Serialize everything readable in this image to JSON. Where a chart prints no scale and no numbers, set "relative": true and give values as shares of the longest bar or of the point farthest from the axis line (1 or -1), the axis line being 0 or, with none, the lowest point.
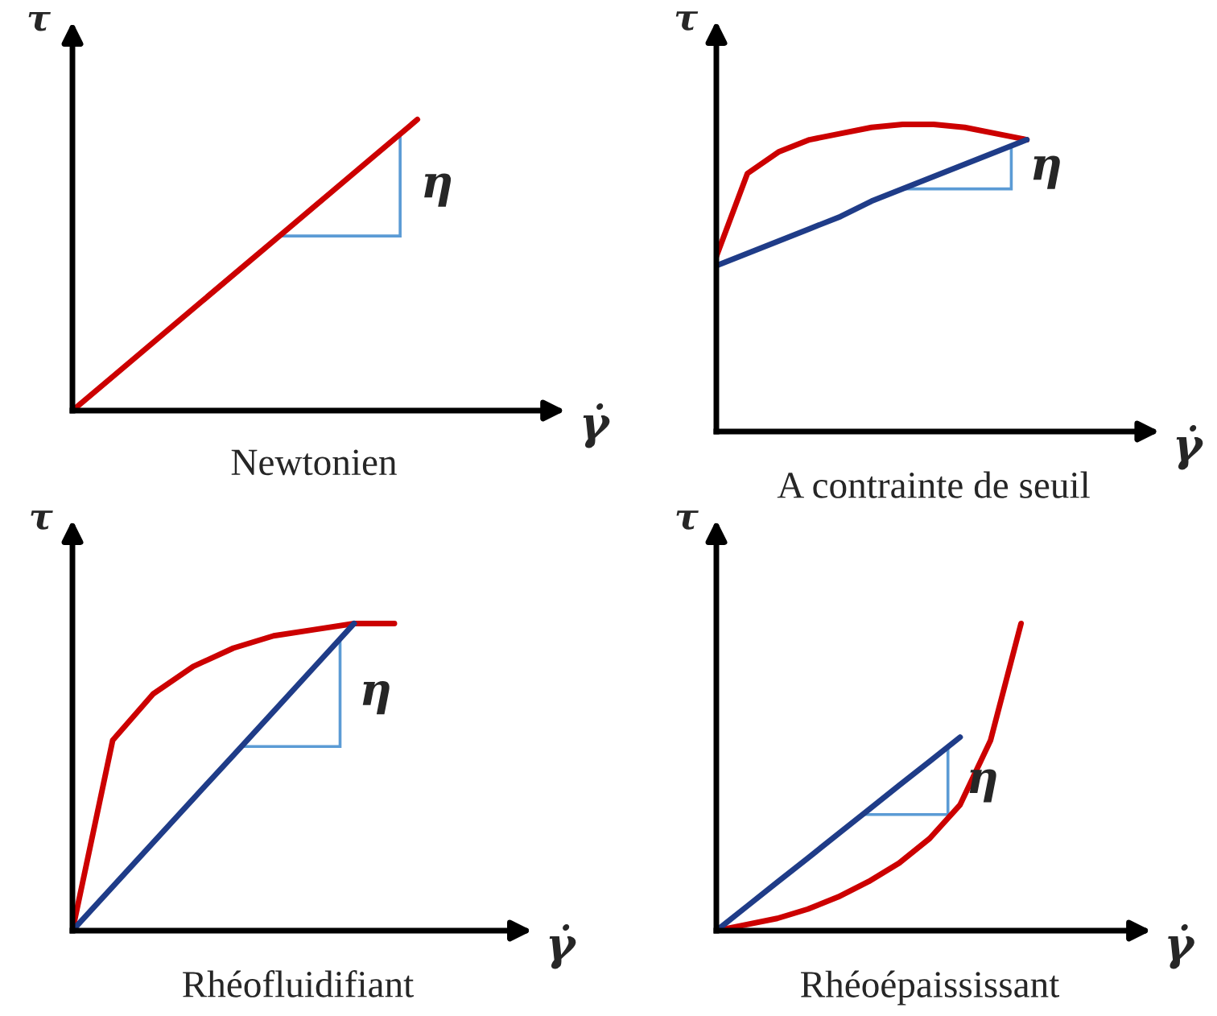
{
  "chart_data": [
    {
      "type": "line",
      "title": "Newtonien",
      "xlabel": "γ̇",
      "ylabel": "τ",
      "relative": true,
      "annotations": [
        "η"
      ],
      "categories": [
        null,
        null,
        null,
        null,
        null,
        null,
        null,
        null,
        null
      ],
      "series": [
        {
          "color": "#cc0000",
          "values": [
            0,
            0.125,
            0.25,
            0.375,
            0.5,
            0.625,
            0.75,
            0.875,
            1.0
          ]
        }
      ]
    },
    {
      "type": "line",
      "title": "A contrainte de seuil",
      "xlabel": "γ̇",
      "ylabel": "τ",
      "relative": true,
      "annotations": [
        "η"
      ],
      "categories": [
        null,
        null,
        null,
        null,
        null,
        null,
        null,
        null,
        null,
        null,
        null
      ],
      "series": [
        {
          "color": "#cc0000",
          "values": [
            0.57,
            0.84,
            0.91,
            0.95,
            0.97,
            0.99,
            1.0,
            1.0,
            0.99,
            0.97,
            0.95
          ]
        },
        {
          "color": "#1f3c88",
          "values": [
            0.54,
            0.58,
            0.62,
            0.66,
            0.7,
            0.75,
            0.79,
            0.83,
            0.87,
            0.91,
            0.95
          ]
        }
      ]
    },
    {
      "type": "line",
      "title": "Rhéofluidifiant",
      "xlabel": "γ̇",
      "ylabel": "τ",
      "relative": true,
      "annotations": [
        "η"
      ],
      "categories": [
        null,
        null,
        null,
        null,
        null,
        null,
        null,
        null,
        null
      ],
      "series": [
        {
          "color": "#cc0000",
          "values": [
            0,
            0.62,
            0.77,
            0.86,
            0.92,
            0.96,
            0.98,
            1.0,
            1.0
          ]
        },
        {
          "color": "#1f3c88",
          "values": [
            0,
            0.143,
            0.286,
            0.429,
            0.571,
            0.714,
            0.857,
            1.0,
            null
          ]
        }
      ]
    },
    {
      "type": "line",
      "title": "Rhéoépaississant",
      "xlabel": "γ̇",
      "ylabel": "τ",
      "relative": true,
      "annotations": [
        "η"
      ],
      "categories": [
        null,
        null,
        null,
        null,
        null,
        null,
        null,
        null,
        null,
        null,
        null
      ],
      "series": [
        {
          "color": "#cc0000",
          "values": [
            0,
            0.02,
            0.04,
            0.07,
            0.11,
            0.16,
            0.22,
            0.3,
            0.41,
            0.62,
            1.0
          ]
        },
        {
          "color": "#1f3c88",
          "values": [
            0,
            0.079,
            0.158,
            0.236,
            0.315,
            0.394,
            0.473,
            0.551,
            0.63,
            null,
            null
          ]
        }
      ]
    }
  ]
}
